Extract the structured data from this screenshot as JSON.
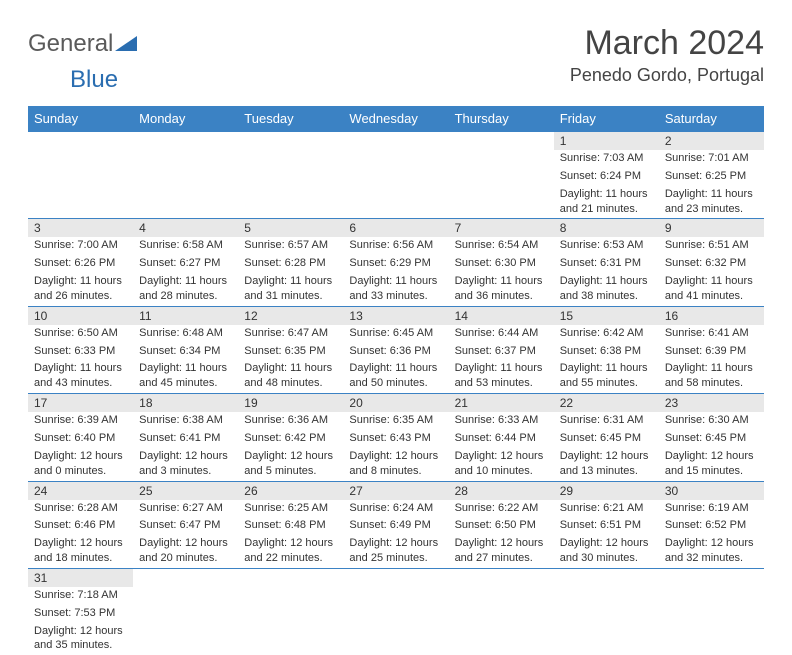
{
  "brand": {
    "general": "General",
    "blue": "Blue"
  },
  "title": {
    "month": "March 2024",
    "location": "Penedo Gordo, Portugal"
  },
  "colors": {
    "header_bg": "#3b82c4",
    "header_fg": "#ffffff",
    "daynum_bg": "#e8e8e8",
    "border": "#3b82c4",
    "logo_gray": "#5a5a5a",
    "logo_blue": "#2a6db0"
  },
  "weekdays": [
    "Sunday",
    "Monday",
    "Tuesday",
    "Wednesday",
    "Thursday",
    "Friday",
    "Saturday"
  ],
  "weeks": [
    [
      {
        "day": "",
        "sunrise": "",
        "sunset": "",
        "daylight": ""
      },
      {
        "day": "",
        "sunrise": "",
        "sunset": "",
        "daylight": ""
      },
      {
        "day": "",
        "sunrise": "",
        "sunset": "",
        "daylight": ""
      },
      {
        "day": "",
        "sunrise": "",
        "sunset": "",
        "daylight": ""
      },
      {
        "day": "",
        "sunrise": "",
        "sunset": "",
        "daylight": ""
      },
      {
        "day": "1",
        "sunrise": "Sunrise: 7:03 AM",
        "sunset": "Sunset: 6:24 PM",
        "daylight": "Daylight: 11 hours and 21 minutes."
      },
      {
        "day": "2",
        "sunrise": "Sunrise: 7:01 AM",
        "sunset": "Sunset: 6:25 PM",
        "daylight": "Daylight: 11 hours and 23 minutes."
      }
    ],
    [
      {
        "day": "3",
        "sunrise": "Sunrise: 7:00 AM",
        "sunset": "Sunset: 6:26 PM",
        "daylight": "Daylight: 11 hours and 26 minutes."
      },
      {
        "day": "4",
        "sunrise": "Sunrise: 6:58 AM",
        "sunset": "Sunset: 6:27 PM",
        "daylight": "Daylight: 11 hours and 28 minutes."
      },
      {
        "day": "5",
        "sunrise": "Sunrise: 6:57 AM",
        "sunset": "Sunset: 6:28 PM",
        "daylight": "Daylight: 11 hours and 31 minutes."
      },
      {
        "day": "6",
        "sunrise": "Sunrise: 6:56 AM",
        "sunset": "Sunset: 6:29 PM",
        "daylight": "Daylight: 11 hours and 33 minutes."
      },
      {
        "day": "7",
        "sunrise": "Sunrise: 6:54 AM",
        "sunset": "Sunset: 6:30 PM",
        "daylight": "Daylight: 11 hours and 36 minutes."
      },
      {
        "day": "8",
        "sunrise": "Sunrise: 6:53 AM",
        "sunset": "Sunset: 6:31 PM",
        "daylight": "Daylight: 11 hours and 38 minutes."
      },
      {
        "day": "9",
        "sunrise": "Sunrise: 6:51 AM",
        "sunset": "Sunset: 6:32 PM",
        "daylight": "Daylight: 11 hours and 41 minutes."
      }
    ],
    [
      {
        "day": "10",
        "sunrise": "Sunrise: 6:50 AM",
        "sunset": "Sunset: 6:33 PM",
        "daylight": "Daylight: 11 hours and 43 minutes."
      },
      {
        "day": "11",
        "sunrise": "Sunrise: 6:48 AM",
        "sunset": "Sunset: 6:34 PM",
        "daylight": "Daylight: 11 hours and 45 minutes."
      },
      {
        "day": "12",
        "sunrise": "Sunrise: 6:47 AM",
        "sunset": "Sunset: 6:35 PM",
        "daylight": "Daylight: 11 hours and 48 minutes."
      },
      {
        "day": "13",
        "sunrise": "Sunrise: 6:45 AM",
        "sunset": "Sunset: 6:36 PM",
        "daylight": "Daylight: 11 hours and 50 minutes."
      },
      {
        "day": "14",
        "sunrise": "Sunrise: 6:44 AM",
        "sunset": "Sunset: 6:37 PM",
        "daylight": "Daylight: 11 hours and 53 minutes."
      },
      {
        "day": "15",
        "sunrise": "Sunrise: 6:42 AM",
        "sunset": "Sunset: 6:38 PM",
        "daylight": "Daylight: 11 hours and 55 minutes."
      },
      {
        "day": "16",
        "sunrise": "Sunrise: 6:41 AM",
        "sunset": "Sunset: 6:39 PM",
        "daylight": "Daylight: 11 hours and 58 minutes."
      }
    ],
    [
      {
        "day": "17",
        "sunrise": "Sunrise: 6:39 AM",
        "sunset": "Sunset: 6:40 PM",
        "daylight": "Daylight: 12 hours and 0 minutes."
      },
      {
        "day": "18",
        "sunrise": "Sunrise: 6:38 AM",
        "sunset": "Sunset: 6:41 PM",
        "daylight": "Daylight: 12 hours and 3 minutes."
      },
      {
        "day": "19",
        "sunrise": "Sunrise: 6:36 AM",
        "sunset": "Sunset: 6:42 PM",
        "daylight": "Daylight: 12 hours and 5 minutes."
      },
      {
        "day": "20",
        "sunrise": "Sunrise: 6:35 AM",
        "sunset": "Sunset: 6:43 PM",
        "daylight": "Daylight: 12 hours and 8 minutes."
      },
      {
        "day": "21",
        "sunrise": "Sunrise: 6:33 AM",
        "sunset": "Sunset: 6:44 PM",
        "daylight": "Daylight: 12 hours and 10 minutes."
      },
      {
        "day": "22",
        "sunrise": "Sunrise: 6:31 AM",
        "sunset": "Sunset: 6:45 PM",
        "daylight": "Daylight: 12 hours and 13 minutes."
      },
      {
        "day": "23",
        "sunrise": "Sunrise: 6:30 AM",
        "sunset": "Sunset: 6:45 PM",
        "daylight": "Daylight: 12 hours and 15 minutes."
      }
    ],
    [
      {
        "day": "24",
        "sunrise": "Sunrise: 6:28 AM",
        "sunset": "Sunset: 6:46 PM",
        "daylight": "Daylight: 12 hours and 18 minutes."
      },
      {
        "day": "25",
        "sunrise": "Sunrise: 6:27 AM",
        "sunset": "Sunset: 6:47 PM",
        "daylight": "Daylight: 12 hours and 20 minutes."
      },
      {
        "day": "26",
        "sunrise": "Sunrise: 6:25 AM",
        "sunset": "Sunset: 6:48 PM",
        "daylight": "Daylight: 12 hours and 22 minutes."
      },
      {
        "day": "27",
        "sunrise": "Sunrise: 6:24 AM",
        "sunset": "Sunset: 6:49 PM",
        "daylight": "Daylight: 12 hours and 25 minutes."
      },
      {
        "day": "28",
        "sunrise": "Sunrise: 6:22 AM",
        "sunset": "Sunset: 6:50 PM",
        "daylight": "Daylight: 12 hours and 27 minutes."
      },
      {
        "day": "29",
        "sunrise": "Sunrise: 6:21 AM",
        "sunset": "Sunset: 6:51 PM",
        "daylight": "Daylight: 12 hours and 30 minutes."
      },
      {
        "day": "30",
        "sunrise": "Sunrise: 6:19 AM",
        "sunset": "Sunset: 6:52 PM",
        "daylight": "Daylight: 12 hours and 32 minutes."
      }
    ],
    [
      {
        "day": "31",
        "sunrise": "Sunrise: 7:18 AM",
        "sunset": "Sunset: 7:53 PM",
        "daylight": "Daylight: 12 hours and 35 minutes."
      },
      {
        "day": "",
        "sunrise": "",
        "sunset": "",
        "daylight": ""
      },
      {
        "day": "",
        "sunrise": "",
        "sunset": "",
        "daylight": ""
      },
      {
        "day": "",
        "sunrise": "",
        "sunset": "",
        "daylight": ""
      },
      {
        "day": "",
        "sunrise": "",
        "sunset": "",
        "daylight": ""
      },
      {
        "day": "",
        "sunrise": "",
        "sunset": "",
        "daylight": ""
      },
      {
        "day": "",
        "sunrise": "",
        "sunset": "",
        "daylight": ""
      }
    ]
  ]
}
